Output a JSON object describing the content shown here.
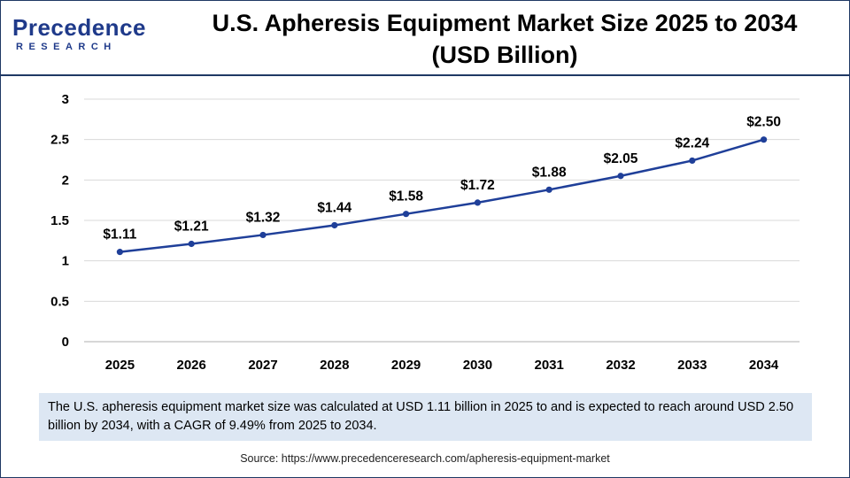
{
  "header": {
    "logo_main": "Precedence",
    "logo_sub": "RESEARCH",
    "title_line1": "U.S. Apheresis Equipment Market Size 2025 to 2034",
    "title_line2": "(USD Billion)"
  },
  "caption": "The U.S. apheresis equipment market size was calculated at USD 1.11 billion in 2025 to and is expected to reach around USD 2.50 billion by 2034, with a CAGR of 9.49% from 2025 to 2034.",
  "source": "Source: https://www.precedenceresearch.com/apheresis-equipment-market",
  "colors": {
    "line": "#1f3f99",
    "brand": "#1f3a8a",
    "caption_bg": "#dde7f3"
  },
  "chart_data": {
    "type": "line",
    "title": "U.S. Apheresis Equipment Market Size 2025 to 2034 (USD Billion)",
    "x": [
      "2025",
      "2026",
      "2027",
      "2028",
      "2029",
      "2030",
      "2031",
      "2032",
      "2033",
      "2034"
    ],
    "values": [
      1.11,
      1.21,
      1.32,
      1.44,
      1.58,
      1.72,
      1.88,
      2.05,
      2.24,
      2.5
    ],
    "labels": [
      "$1.11",
      "$1.21",
      "$1.32",
      "$1.44",
      "$1.58",
      "$1.72",
      "$1.88",
      "$2.05",
      "$2.24",
      "$2.50"
    ],
    "yticks": [
      "0",
      "0.5",
      "1",
      "1.5",
      "2",
      "2.5",
      "3"
    ],
    "ylim": [
      0,
      3
    ],
    "xlabel": "",
    "ylabel": "",
    "grid": true
  }
}
